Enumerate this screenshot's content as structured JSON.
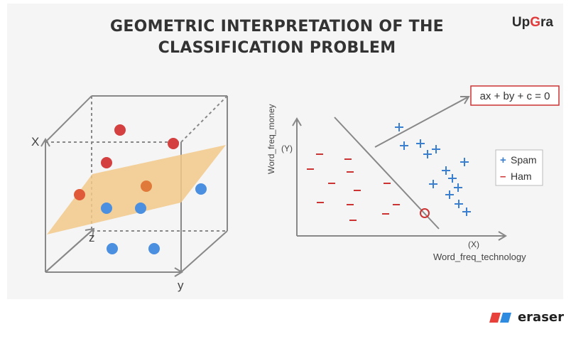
{
  "title_line1": "GEOMETRIC INTERPRETATION OF THE",
  "title_line2": "CLASSIFICATION PROBLEM",
  "brand": {
    "part1": "Up",
    "part2": "G",
    "part3": "ra"
  },
  "cube_axes": {
    "x": "X",
    "y": "y",
    "z": "z"
  },
  "plot2d": {
    "ylabel": "Word_freq_money",
    "ylabel_symbol": "(Y)",
    "xlabel": "Word_freq_technology",
    "xlabel_symbol": "(X)",
    "equation": "ax + by + c = 0",
    "legend": [
      {
        "symbol": "+",
        "label": "Spam",
        "color": "#3b7fd0"
      },
      {
        "symbol": "–",
        "label": "Ham",
        "color": "#cc3333"
      }
    ]
  },
  "watermark": "eraser",
  "colors": {
    "red_point": "#d43f3f",
    "blue_point": "#4a8fe0",
    "plane": "#f2c98a",
    "orange_point": "#e07a3a"
  }
}
